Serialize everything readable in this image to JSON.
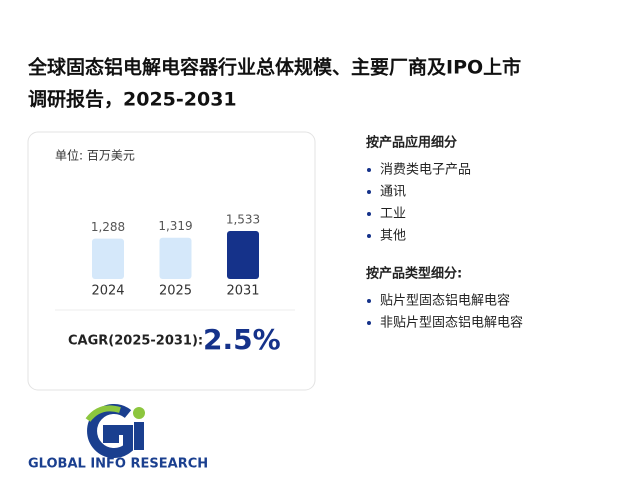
{
  "chart_data": {
    "type": "bar",
    "title": "全球固态铝电解电容器行业总体规模、主要厂商及IPO上市调研报告，2025-2031",
    "title_lines": [
      "全球固态铝电解电容器行业总体规模、主要厂商及IPO上市",
      "调研报告，2025-2031"
    ],
    "unit": "单位: 百万美元",
    "categories": [
      "2024",
      "2025",
      "2031"
    ],
    "values": [
      1288,
      1319,
      1533
    ],
    "value_labels": [
      "1,288",
      "1,319",
      "1,533"
    ],
    "colors": [
      "#d5e8fa",
      "#d5e8fa",
      "#15328a"
    ],
    "cagr_label": "CAGR(2025-2031):",
    "cagr_value": "2.5%"
  },
  "segments": [
    {
      "heading": "按产品应用细分",
      "items": [
        "消费类电子产品",
        "通讯",
        "工业",
        "其他"
      ]
    },
    {
      "heading": "按产品类型细分:",
      "items": [
        "贴片型固态铝电解电容",
        "非贴片型固态铝电解电容"
      ]
    }
  ],
  "logo": {
    "text": "GLOBAL INFO RESEARCH"
  }
}
